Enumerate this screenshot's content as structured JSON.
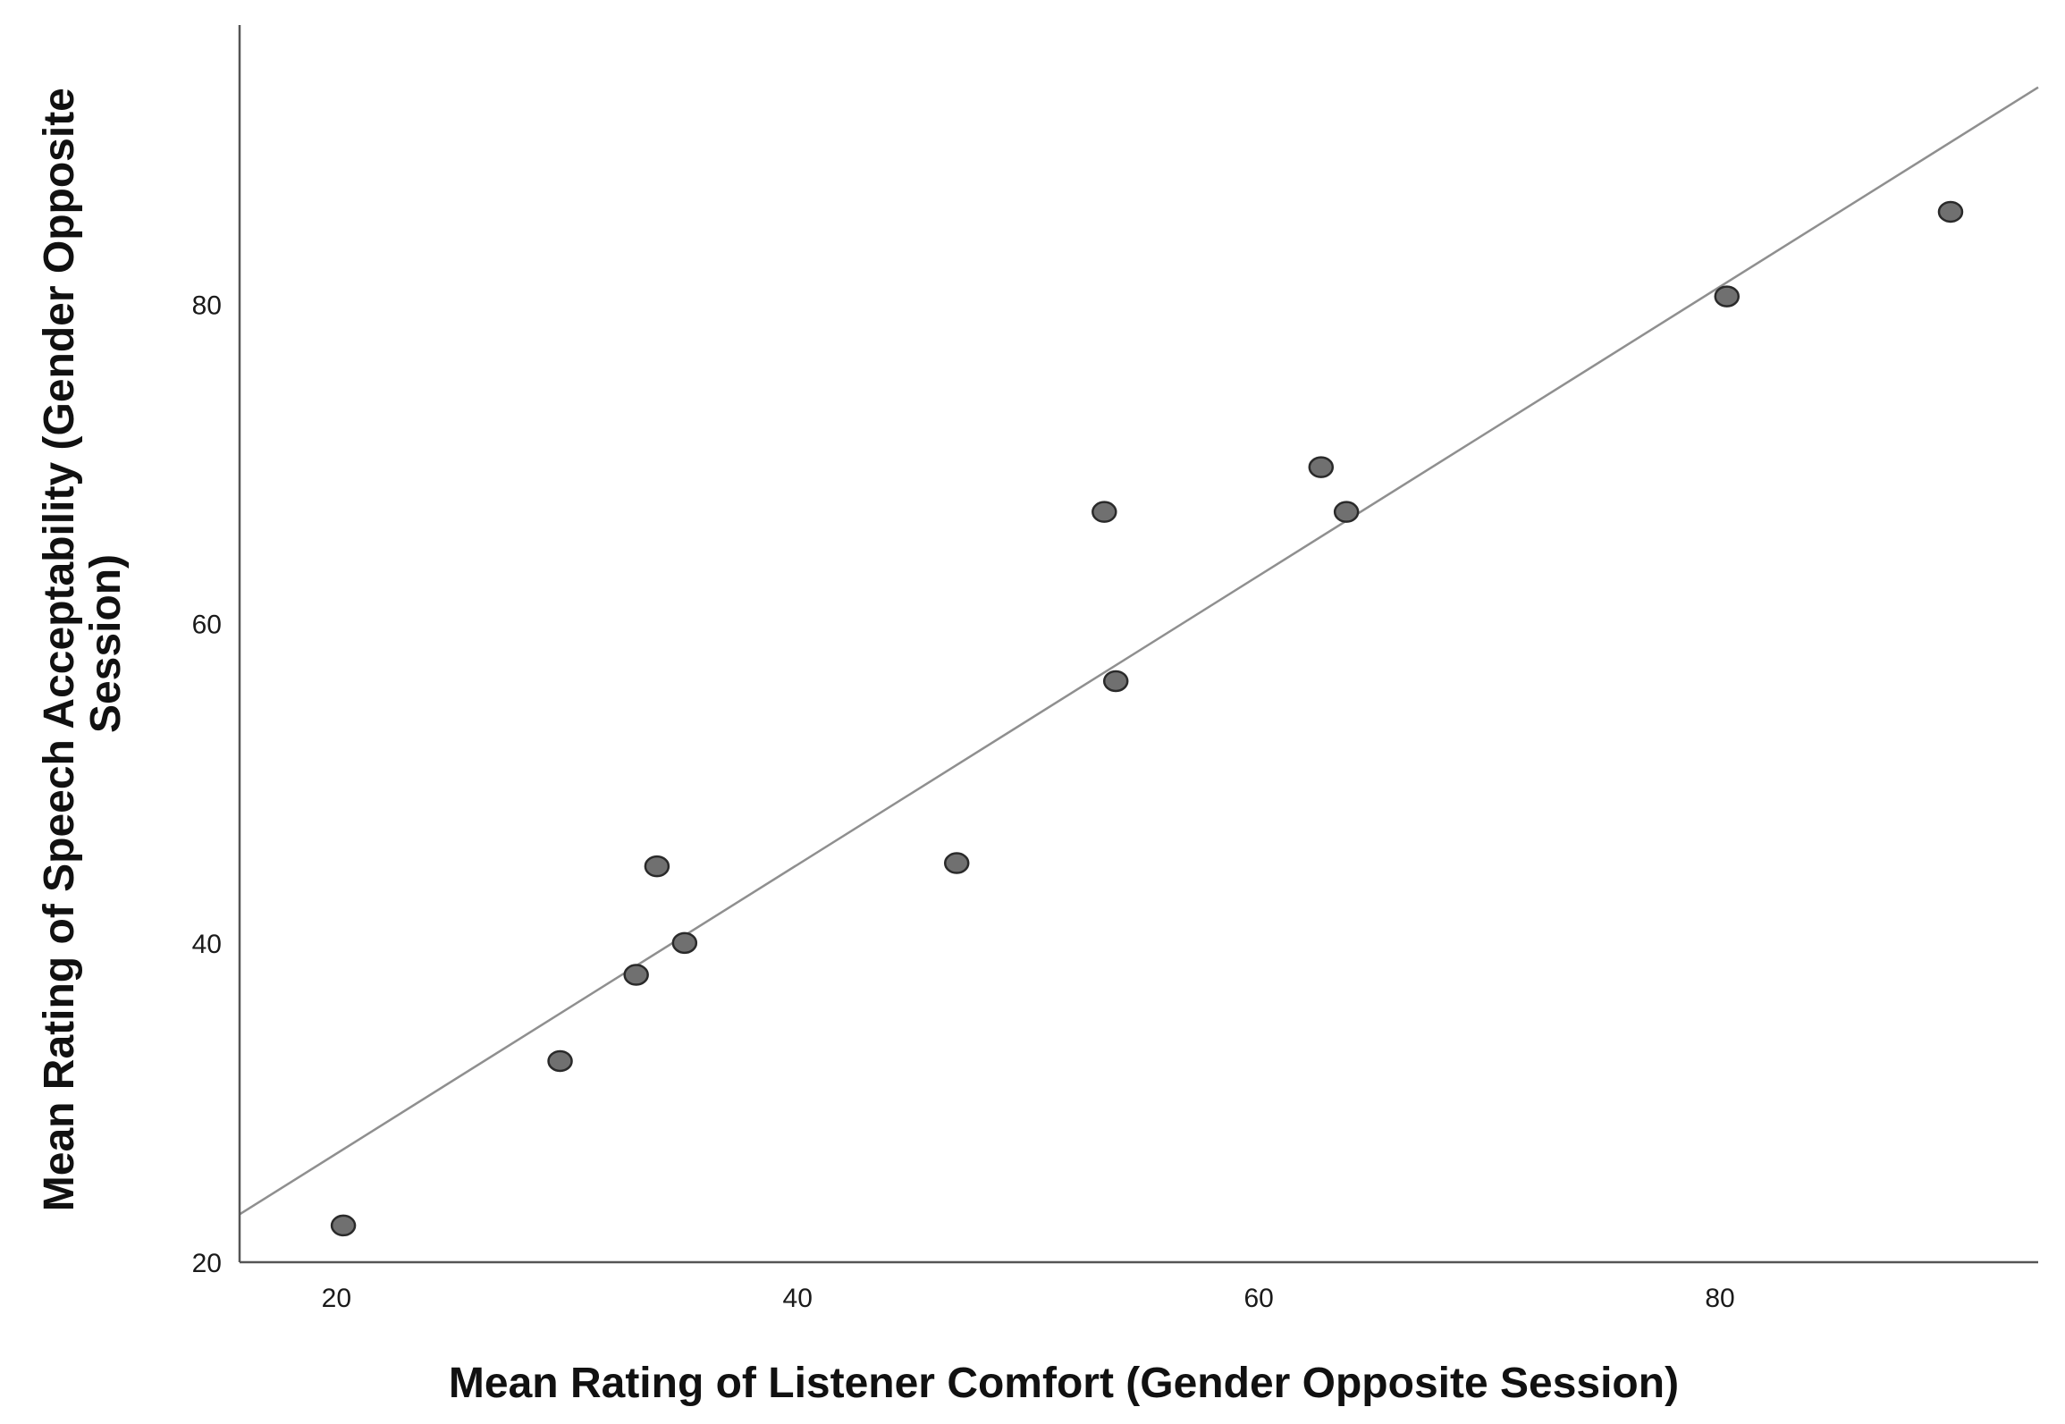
{
  "chart_data": {
    "type": "scatter",
    "title": "",
    "xlabel": "Mean Rating of Listener Comfort (Gender Opposite Session)",
    "ylabel_lines": [
      "Mean Rating of Speech Acceptability (Gender Opposite",
      "Session)"
    ],
    "xlim": [
      15.8,
      93.8
    ],
    "ylim": [
      20,
      97.5
    ],
    "x_ticks": [
      20,
      40,
      60,
      80
    ],
    "y_ticks": [
      20,
      40,
      60,
      80
    ],
    "grid": false,
    "legend": "none",
    "series": [
      {
        "points": [
          {
            "x": 20.3,
            "y": 22.3
          },
          {
            "x": 29.7,
            "y": 32.6
          },
          {
            "x": 33.0,
            "y": 38.0
          },
          {
            "x": 33.9,
            "y": 44.8
          },
          {
            "x": 35.1,
            "y": 40.0
          },
          {
            "x": 46.9,
            "y": 45.0
          },
          {
            "x": 53.3,
            "y": 67.0
          },
          {
            "x": 53.8,
            "y": 56.4
          },
          {
            "x": 62.7,
            "y": 69.8
          },
          {
            "x": 63.8,
            "y": 67.0
          },
          {
            "x": 80.3,
            "y": 80.5
          },
          {
            "x": 90.0,
            "y": 85.8
          }
        ]
      }
    ],
    "fit_line": {
      "x": [
        15.8,
        93.8
      ],
      "y": [
        23.0,
        93.6
      ]
    },
    "colors": {
      "marker_fill": "#707070",
      "marker_stroke": "#2a2a2a",
      "fit_line": "#8f8f8f",
      "axis": "#555555"
    }
  }
}
